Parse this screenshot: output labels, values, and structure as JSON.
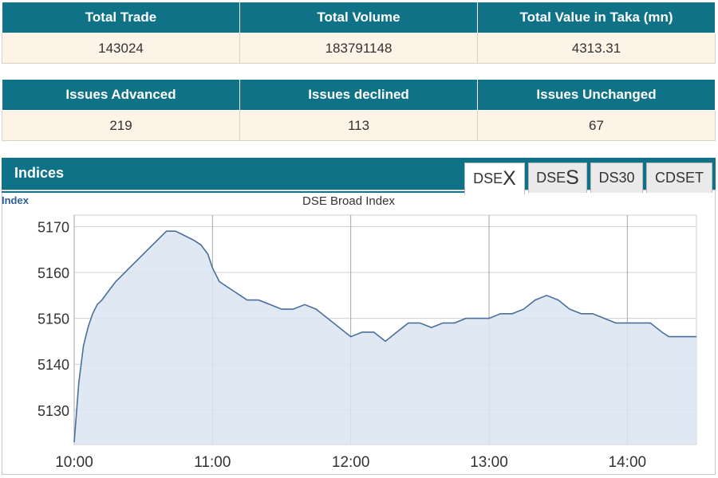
{
  "summary_top": {
    "headers": [
      "Total Trade",
      "Total Volume",
      "Total Value in Taka (mn)"
    ],
    "values": [
      "143024",
      "183791148",
      "4313.31"
    ]
  },
  "summary_bottom": {
    "headers": [
      "Issues Advanced",
      "Issues declined",
      "Issues Unchanged"
    ],
    "values": [
      "219",
      "113",
      "67"
    ]
  },
  "indices": {
    "title": "Indices",
    "tabs": [
      {
        "prefix": "DSE",
        "suffix": "X",
        "active": true
      },
      {
        "prefix": "DSE",
        "suffix": "S",
        "active": false
      },
      {
        "prefix": "DS30",
        "suffix": "",
        "active": false
      },
      {
        "prefix": "CDSET",
        "suffix": "",
        "active": false
      }
    ]
  },
  "colors": {
    "header_bg": "#0f7286",
    "cell_bg": "#fdf3e6",
    "line": "#4a6f9a",
    "area": "#dbe5f1"
  },
  "chart_data": {
    "type": "area",
    "title": "DSE Broad Index",
    "ylabel": "Index",
    "xlabel": "",
    "x_ticks": [
      "10:00",
      "11:00",
      "12:00",
      "13:00",
      "14:00"
    ],
    "y_ticks": [
      5130,
      5140,
      5150,
      5160,
      5170
    ],
    "ylim": [
      5122.5,
      5172.5
    ],
    "xlim": [
      "10:00",
      "14:30"
    ],
    "grid": true,
    "series": [
      {
        "x": [
          "10:00",
          "10:02",
          "10:04",
          "10:06",
          "10:08",
          "10:10",
          "10:12",
          "10:15",
          "10:18",
          "10:20",
          "10:24",
          "10:28",
          "10:32",
          "10:36",
          "10:40",
          "10:44",
          "10:48",
          "10:52",
          "10:55",
          "10:58",
          "11:00",
          "11:03",
          "11:06",
          "11:09",
          "11:12",
          "11:15",
          "11:20",
          "11:25",
          "11:30",
          "11:35",
          "11:40",
          "11:45",
          "11:50",
          "11:55",
          "12:00",
          "12:05",
          "12:10",
          "12:15",
          "12:20",
          "12:25",
          "12:30",
          "12:35",
          "12:40",
          "12:45",
          "12:50",
          "12:55",
          "13:00",
          "13:05",
          "13:10",
          "13:15",
          "13:20",
          "13:25",
          "13:30",
          "13:35",
          "13:40",
          "13:45",
          "13:50",
          "13:55",
          "14:00",
          "14:05",
          "14:10",
          "14:15",
          "14:18",
          "14:20",
          "14:25",
          "14:30"
        ],
        "values": [
          5123,
          5136,
          5144,
          5148,
          5151,
          5153,
          5154,
          5156,
          5158,
          5159,
          5161,
          5163,
          5165,
          5167,
          5169,
          5169,
          5168,
          5167,
          5166,
          5164,
          5161,
          5158,
          5157,
          5156,
          5155,
          5154,
          5154,
          5153,
          5152,
          5152,
          5153,
          5152,
          5150,
          5148,
          5146,
          5147,
          5147,
          5145,
          5147,
          5149,
          5149,
          5148,
          5149,
          5149,
          5150,
          5150,
          5150,
          5151,
          5151,
          5152,
          5154,
          5155,
          5154,
          5152,
          5151,
          5151,
          5150,
          5149,
          5149,
          5149,
          5149,
          5147,
          5146,
          5146,
          5146,
          5146
        ]
      }
    ]
  }
}
